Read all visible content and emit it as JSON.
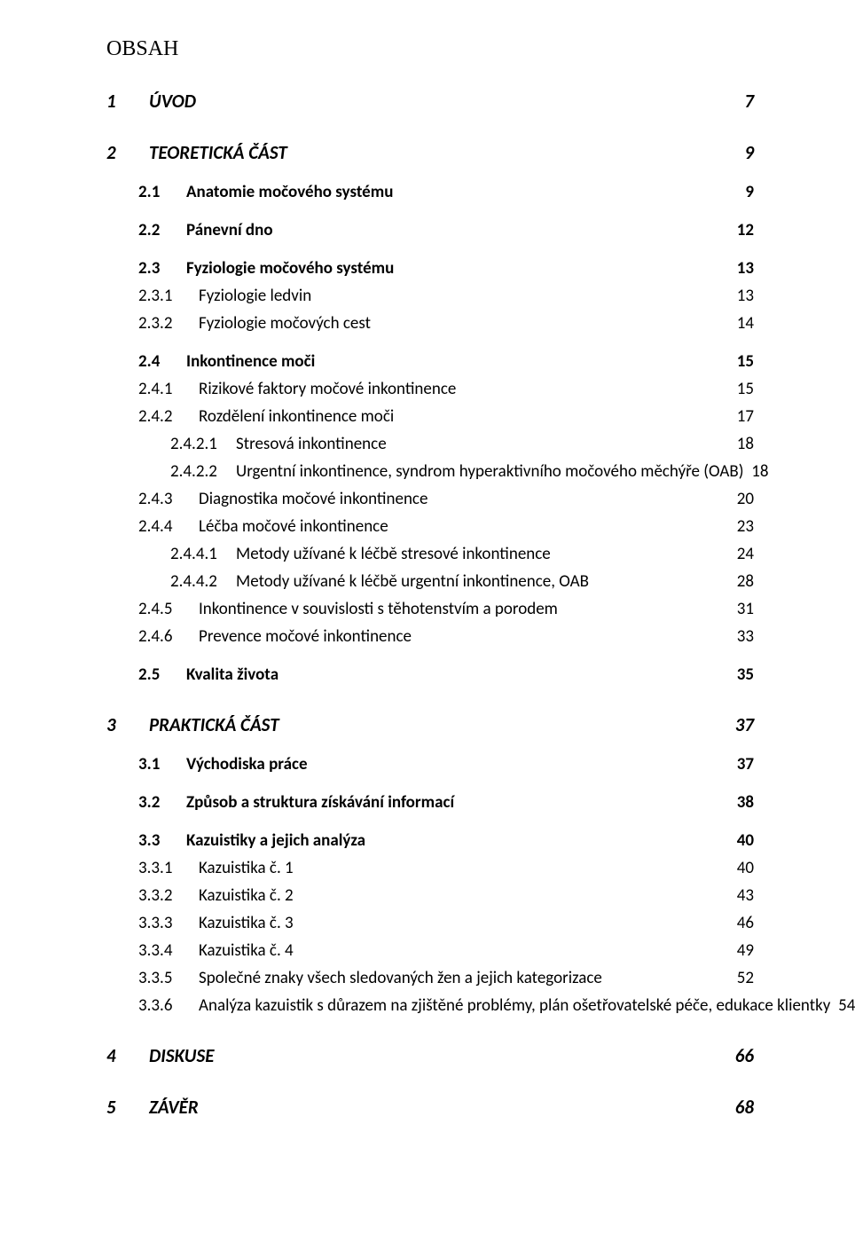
{
  "page_title": "OBSAH",
  "colors": {
    "text": "#000000",
    "background": "#ffffff"
  },
  "typography": {
    "title_font": "Times New Roman",
    "body_font": "Calibri",
    "title_size_pt": 18,
    "lvl1_size_pt": 15,
    "lvl2_size_pt": 14,
    "lvl3_size_pt": 14,
    "lvl4_size_pt": 14
  },
  "toc": [
    {
      "level": 1,
      "num": "1",
      "text": "ÚVOD",
      "page": "7"
    },
    {
      "level": 1,
      "num": "2",
      "text": "TEORETICKÁ ČÁST",
      "page": "9"
    },
    {
      "level": 2,
      "num": "2.1",
      "text": "Anatomie močového systému",
      "page": "9"
    },
    {
      "level": 2,
      "num": "2.2",
      "text": "Pánevní dno",
      "page": "12"
    },
    {
      "level": 2,
      "num": "2.3",
      "text": "Fyziologie močového systému",
      "page": "13"
    },
    {
      "level": 3,
      "num": "2.3.1",
      "text": "Fyziologie ledvin",
      "page": "13"
    },
    {
      "level": 3,
      "num": "2.3.2",
      "text": "Fyziologie močových cest",
      "page": "14"
    },
    {
      "level": 2,
      "num": "2.4",
      "text": "Inkontinence moči",
      "page": "15"
    },
    {
      "level": 3,
      "num": "2.4.1",
      "text": "Rizikové faktory močové inkontinence",
      "page": "15"
    },
    {
      "level": 3,
      "num": "2.4.2",
      "text": "Rozdělení inkontinence moči",
      "page": "17"
    },
    {
      "level": 4,
      "num": "2.4.2.1",
      "text": "Stresová inkontinence",
      "page": "18"
    },
    {
      "level": 4,
      "num": "2.4.2.2",
      "text": "Urgentní inkontinence, syndrom hyperaktivního močového měchýře (OAB)",
      "page": "18"
    },
    {
      "level": 3,
      "num": "2.4.3",
      "text": "Diagnostika močové inkontinence",
      "page": "20"
    },
    {
      "level": 3,
      "num": "2.4.4",
      "text": "Léčba močové inkontinence",
      "page": "23"
    },
    {
      "level": 4,
      "num": "2.4.4.1",
      "text": "Metody užívané k léčbě stresové inkontinence",
      "page": "24"
    },
    {
      "level": 4,
      "num": "2.4.4.2",
      "text": "Metody užívané k léčbě urgentní inkontinence, OAB",
      "page": "28"
    },
    {
      "level": 3,
      "num": "2.4.5",
      "text": "Inkontinence v souvislosti s těhotenstvím a porodem",
      "page": "31"
    },
    {
      "level": 3,
      "num": "2.4.6",
      "text": "Prevence močové inkontinence",
      "page": "33"
    },
    {
      "level": 2,
      "num": "2.5",
      "text": "Kvalita života",
      "page": "35"
    },
    {
      "level": 1,
      "num": "3",
      "text": "PRAKTICKÁ ČÁST",
      "page": "37"
    },
    {
      "level": 2,
      "num": "3.1",
      "text": "Východiska práce",
      "page": "37"
    },
    {
      "level": 2,
      "num": "3.2",
      "text": "Způsob a struktura získávání informací",
      "page": "38"
    },
    {
      "level": 2,
      "num": "3.3",
      "text": "Kazuistiky a jejich analýza",
      "page": "40"
    },
    {
      "level": 3,
      "num": "3.3.1",
      "text": "Kazuistika č. 1",
      "page": "40"
    },
    {
      "level": 3,
      "num": "3.3.2",
      "text": "Kazuistika č. 2",
      "page": "43"
    },
    {
      "level": 3,
      "num": "3.3.3",
      "text": "Kazuistika č. 3",
      "page": "46"
    },
    {
      "level": 3,
      "num": "3.3.4",
      "text": "Kazuistika č. 4",
      "page": "49"
    },
    {
      "level": 3,
      "num": "3.3.5",
      "text": "Společné znaky všech sledovaných žen a jejich kategorizace",
      "page": "52"
    },
    {
      "level": 3,
      "num": "3.3.6",
      "text": "Analýza kazuistik s důrazem na zjištěné problémy, plán ošetřovatelské péče, edukace klientky",
      "page": "54"
    },
    {
      "level": 1,
      "num": "4",
      "text": "DISKUSE",
      "page": "66"
    },
    {
      "level": 1,
      "num": "5",
      "text": "ZÁVĚR",
      "page": "68"
    }
  ]
}
